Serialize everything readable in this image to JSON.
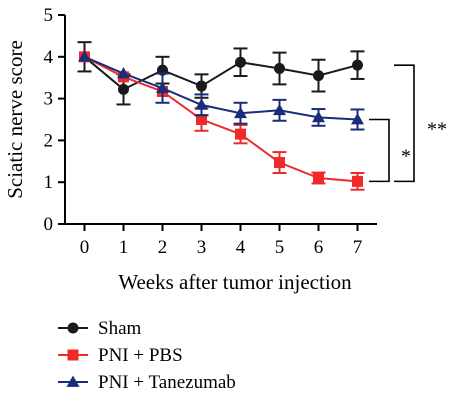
{
  "chart_data": {
    "type": "line",
    "title": "",
    "xlabel": "Weeks after tumor injection",
    "ylabel": "Sciatic nerve score",
    "x": [
      0,
      1,
      2,
      3,
      4,
      5,
      6,
      7
    ],
    "xlim": [
      -0.5,
      7.5
    ],
    "ylim": [
      0,
      5
    ],
    "xticks": [
      "0",
      "1",
      "2",
      "3",
      "4",
      "5",
      "6",
      "7"
    ],
    "yticks": [
      "0",
      "1",
      "2",
      "3",
      "4",
      "5"
    ],
    "grid": false,
    "legend_position": "bottom",
    "series": [
      {
        "name": "Sham",
        "color": "#1a1a1a",
        "marker": "circle",
        "values": [
          4.0,
          3.22,
          3.68,
          3.3,
          3.87,
          3.72,
          3.55,
          3.8
        ],
        "errors": [
          0.35,
          0.36,
          0.32,
          0.28,
          0.33,
          0.38,
          0.38,
          0.33
        ]
      },
      {
        "name": "PNI + PBS",
        "color": "#ee2a2a",
        "marker": "square",
        "values": [
          4.0,
          3.52,
          3.17,
          2.5,
          2.15,
          1.47,
          1.1,
          1.02
        ],
        "errors": [
          0.0,
          0.0,
          0.0,
          0.27,
          0.22,
          0.25,
          0.13,
          0.2
        ]
      },
      {
        "name": "PNI + Tanezumab",
        "color": "#1a2d7a",
        "marker": "triangle",
        "values": [
          4.0,
          3.6,
          3.25,
          2.85,
          2.65,
          2.72,
          2.55,
          2.5
        ],
        "errors": [
          0.0,
          0.0,
          0.35,
          0.25,
          0.25,
          0.25,
          0.2,
          0.24
        ]
      }
    ],
    "annotations": [
      {
        "label": "*",
        "between": [
          "PNI + PBS",
          "PNI + Tanezumab"
        ]
      },
      {
        "label": "**",
        "between": [
          "PNI + PBS",
          "Sham"
        ]
      }
    ]
  }
}
